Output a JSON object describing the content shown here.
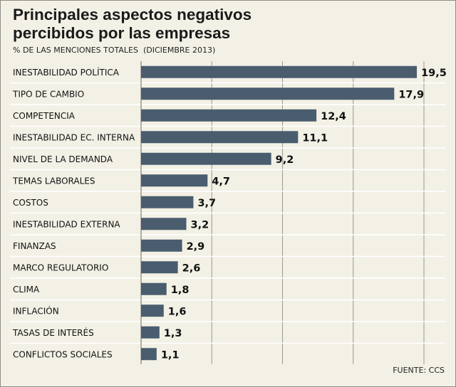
{
  "header": {
    "title": "Principales aspectos negativos percibidos por las empresas",
    "subtitle": "% DE LAS MENCIONES TOTALES  (DICIEMBRE 2013)",
    "source": "FUENTE: CCS"
  },
  "colors": {
    "background": "#f3f1e6",
    "bar": "#4a5d6e",
    "gridline": "#9a9890",
    "separator": "#ffffff"
  },
  "chart_data": {
    "type": "bar",
    "orientation": "horizontal",
    "title": "Principales aspectos negativos percibidos por las empresas",
    "subtitle": "% DE LAS MENCIONES TOTALES  (DICIEMBRE 2013)",
    "xlabel": "",
    "ylabel": "",
    "xlim": [
      0,
      20
    ],
    "grid": true,
    "categories": [
      "INESTABILIDAD POLÍTICA",
      "TIPO DE CAMBIO",
      "COMPETENCIA",
      "INESTABILIDAD EC. INTERNA",
      "NIVEL DE LA DEMANDA",
      "TEMAS LABORALES",
      "COSTOS",
      "INESTABILIDAD EXTERNA",
      "FINANZAS",
      "MARCO REGULATORIO",
      "CLIMA",
      "INFLACIÓN",
      "TASAS DE INTERÉS",
      "CONFLICTOS SOCIALES"
    ],
    "values": [
      19.5,
      17.9,
      12.4,
      11.1,
      9.2,
      4.7,
      3.7,
      3.2,
      2.9,
      2.6,
      1.8,
      1.6,
      1.3,
      1.1
    ],
    "value_labels": [
      "19,5",
      "17,9",
      "12,4",
      "11,1",
      "9,2",
      "4,7",
      "3,7",
      "3,2",
      "2,9",
      "2,6",
      "1,8",
      "1,6",
      "1,3",
      "1,1"
    ]
  }
}
